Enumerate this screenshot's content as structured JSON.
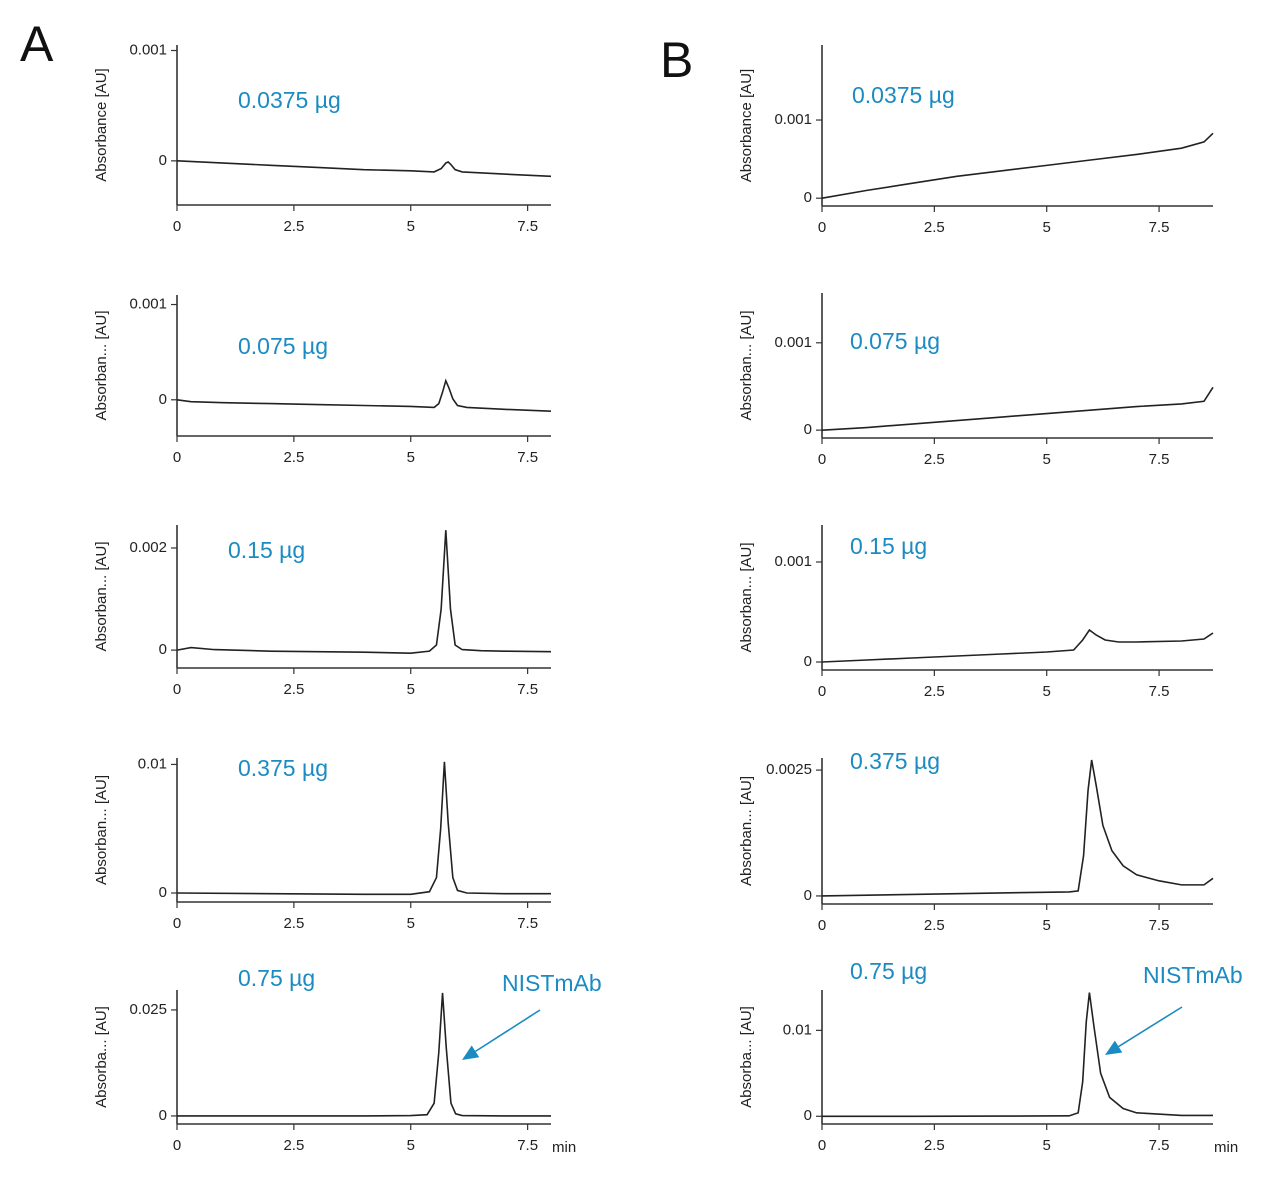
{
  "panel_labels": [
    "A",
    "B"
  ],
  "chart_data": [
    {
      "type": "line",
      "ylabel": "Absorbance [AU]",
      "annotation": "0.0375 µg",
      "color": "#222222",
      "xlim": [
        0,
        8
      ],
      "ylim": [
        -0.0004,
        0.00105
      ],
      "xticks": [
        0,
        2.5,
        5,
        7.5
      ],
      "yticks": [
        0,
        0.001
      ],
      "x": [
        0,
        1,
        2,
        3,
        4,
        5,
        5.5,
        5.65,
        5.75,
        5.8,
        5.85,
        5.95,
        6.1,
        7,
        8
      ],
      "values": [
        0,
        -2e-05,
        -4e-05,
        -6e-05,
        -8e-05,
        -9e-05,
        -0.0001,
        -7e-05,
        -2e-05,
        -1e-05,
        -3e-05,
        -8e-05,
        -0.0001,
        -0.00012,
        -0.00014
      ]
    },
    {
      "type": "line",
      "ylabel": "Absorban... [AU]",
      "annotation": "0.075 µg",
      "color": "#222222",
      "xlim": [
        0,
        8
      ],
      "ylim": [
        -0.00038,
        0.0011
      ],
      "xticks": [
        0,
        2.5,
        5,
        7.5
      ],
      "yticks": [
        0,
        0.001
      ],
      "x": [
        0,
        0.3,
        1,
        2,
        3,
        4,
        5,
        5.5,
        5.6,
        5.68,
        5.75,
        5.82,
        5.9,
        6.0,
        6.2,
        7,
        8
      ],
      "values": [
        0,
        -2e-05,
        -3e-05,
        -4e-05,
        -5e-05,
        -6e-05,
        -7e-05,
        -8e-05,
        -4e-05,
        8e-05,
        0.0002,
        0.00012,
        1e-05,
        -6e-05,
        -8e-05,
        -0.0001,
        -0.00012
      ]
    },
    {
      "type": "line",
      "ylabel": "Absorban... [AU]",
      "annotation": "0.15 µg",
      "color": "#222222",
      "xlim": [
        0,
        8
      ],
      "ylim": [
        -0.00035,
        0.00245
      ],
      "xticks": [
        0,
        2.5,
        5,
        7.5
      ],
      "yticks": [
        0,
        0.002
      ],
      "x": [
        0,
        0.3,
        0.8,
        2,
        3,
        4,
        5,
        5.4,
        5.55,
        5.65,
        5.75,
        5.85,
        5.95,
        6.1,
        6.5,
        7,
        8
      ],
      "values": [
        0,
        5e-05,
        1e-05,
        -2e-05,
        -3e-05,
        -4e-05,
        -6e-05,
        -2e-05,
        0.0001,
        0.0008,
        0.00235,
        0.0008,
        0.0001,
        1e-05,
        -1e-05,
        -2e-05,
        -3e-05
      ]
    },
    {
      "type": "line",
      "ylabel": "Absorban... [AU]",
      "annotation": "0.375 µg",
      "color": "#222222",
      "xlim": [
        0,
        8
      ],
      "ylim": [
        -0.0007,
        0.0105
      ],
      "xticks": [
        0,
        2.5,
        5,
        7.5
      ],
      "yticks": [
        0,
        0.01
      ],
      "x": [
        0,
        2,
        4,
        5,
        5.4,
        5.55,
        5.64,
        5.72,
        5.8,
        5.9,
        6.0,
        6.2,
        7,
        8
      ],
      "values": [
        0,
        -5e-05,
        -0.0001,
        -0.0001,
        0.0001,
        0.0012,
        0.005,
        0.0102,
        0.0055,
        0.0012,
        0.0002,
        0,
        -5e-05,
        -5e-05
      ]
    },
    {
      "type": "line",
      "ylabel": "Absorba... [AU]",
      "annotation": "0.75 µg",
      "callout": "NISTmAb",
      "xlabel": "min",
      "color": "#222222",
      "xlim": [
        0,
        8
      ],
      "ylim": [
        -0.0019,
        0.0297
      ],
      "xticks": [
        0,
        2.5,
        5,
        7.5
      ],
      "yticks": [
        0,
        0.025
      ],
      "x": [
        0,
        2,
        4,
        5,
        5.35,
        5.5,
        5.6,
        5.68,
        5.76,
        5.86,
        5.96,
        6.1,
        7,
        8
      ],
      "values": [
        0,
        0,
        0,
        0.0001,
        0.0003,
        0.003,
        0.015,
        0.029,
        0.016,
        0.003,
        0.0005,
        0.0001,
        0,
        0
      ]
    },
    {
      "type": "line",
      "ylabel": "Absorbance [AU]",
      "annotation": "0.0375 µg",
      "color": "#222222",
      "xlim": [
        0,
        8.7
      ],
      "ylim": [
        -0.0001,
        0.00196
      ],
      "xticks": [
        0,
        2.5,
        5,
        7.5
      ],
      "yticks": [
        0,
        0.001
      ],
      "x": [
        0,
        1,
        2,
        3,
        4,
        5,
        6,
        7,
        8,
        8.5,
        8.7
      ],
      "values": [
        0,
        0.0001,
        0.00019,
        0.00028,
        0.00035,
        0.00042,
        0.00049,
        0.00056,
        0.00064,
        0.00072,
        0.00083
      ]
    },
    {
      "type": "line",
      "ylabel": "Absorban... [AU]",
      "annotation": "0.075 µg",
      "color": "#222222",
      "xlim": [
        0,
        8.7
      ],
      "ylim": [
        -9e-05,
        0.00157
      ],
      "xticks": [
        0,
        2.5,
        5,
        7.5
      ],
      "yticks": [
        0,
        0.001
      ],
      "x": [
        0,
        1,
        2,
        3,
        4,
        5,
        6,
        7,
        8,
        8.5,
        8.7
      ],
      "values": [
        0,
        3e-05,
        7e-05,
        0.00011,
        0.00015,
        0.00019,
        0.00023,
        0.00027,
        0.0003,
        0.00033,
        0.00049
      ]
    },
    {
      "type": "line",
      "ylabel": "Absorban... [AU]",
      "annotation": "0.15 µg",
      "color": "#222222",
      "xlim": [
        0,
        8.7
      ],
      "ylim": [
        -8e-05,
        0.00137
      ],
      "xticks": [
        0,
        2.5,
        5,
        7.5
      ],
      "yticks": [
        0,
        0.001
      ],
      "x": [
        0,
        1,
        2,
        3,
        4,
        5,
        5.6,
        5.8,
        5.95,
        6.1,
        6.3,
        6.6,
        7,
        8,
        8.5,
        8.7
      ],
      "values": [
        0,
        2e-05,
        4e-05,
        6e-05,
        8e-05,
        0.0001,
        0.00012,
        0.00022,
        0.00032,
        0.00027,
        0.00022,
        0.0002,
        0.0002,
        0.00021,
        0.00023,
        0.00029
      ]
    },
    {
      "type": "line",
      "ylabel": "Absorban... [AU]",
      "annotation": "0.375 µg",
      "color": "#222222",
      "xlim": [
        0,
        8.7
      ],
      "ylim": [
        -0.00016,
        0.00274
      ],
      "xticks": [
        0,
        2.5,
        5,
        7.5
      ],
      "yticks": [
        0,
        0.0025
      ],
      "x": [
        0,
        2,
        4,
        5.5,
        5.7,
        5.82,
        5.92,
        6.0,
        6.1,
        6.25,
        6.45,
        6.7,
        7,
        7.5,
        8,
        8.5,
        8.7
      ],
      "values": [
        0,
        3e-05,
        6e-05,
        8e-05,
        0.0001,
        0.0008,
        0.0021,
        0.0027,
        0.0022,
        0.0014,
        0.0009,
        0.0006,
        0.00042,
        0.0003,
        0.00022,
        0.00022,
        0.00035
      ]
    },
    {
      "type": "line",
      "ylabel": "Absorba... [AU]",
      "annotation": "0.75 µg",
      "callout": "NISTmAb",
      "xlabel": "min",
      "color": "#222222",
      "xlim": [
        0,
        8.7
      ],
      "ylim": [
        -0.0009,
        0.0147
      ],
      "xticks": [
        0,
        2.5,
        5,
        7.5
      ],
      "yticks": [
        0,
        0.01
      ],
      "x": [
        0,
        2,
        4,
        5.5,
        5.7,
        5.8,
        5.88,
        5.95,
        6.05,
        6.2,
        6.4,
        6.7,
        7,
        8,
        8.7
      ],
      "values": [
        0,
        0,
        2e-05,
        5e-05,
        0.0004,
        0.004,
        0.011,
        0.0144,
        0.0105,
        0.005,
        0.0022,
        0.0009,
        0.0004,
        0.0001,
        0.0001
      ]
    }
  ]
}
